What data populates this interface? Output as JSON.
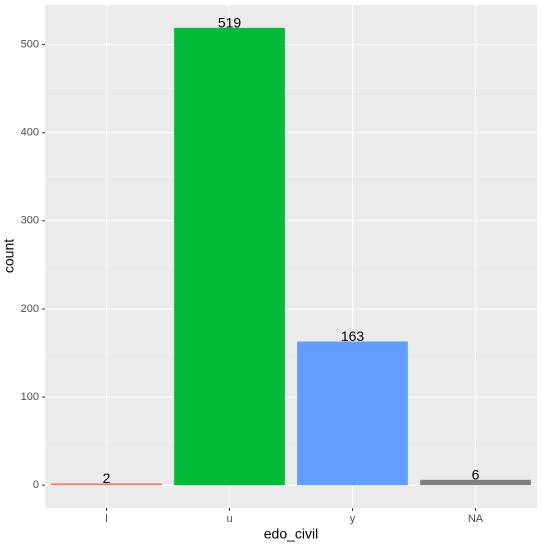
{
  "chart_data": {
    "type": "bar",
    "x_label": "edo_civil",
    "y_label": "count",
    "categories": [
      "l",
      "u",
      "y",
      "NA"
    ],
    "values": [
      2,
      519,
      163,
      6
    ],
    "colors": [
      "#F8766D",
      "#00BA38",
      "#619CFF",
      "#7F7F7F"
    ],
    "ylim": [
      -25.95,
      544.95
    ],
    "yticks": [
      0,
      100,
      200,
      300,
      400,
      500
    ],
    "grid": true
  }
}
